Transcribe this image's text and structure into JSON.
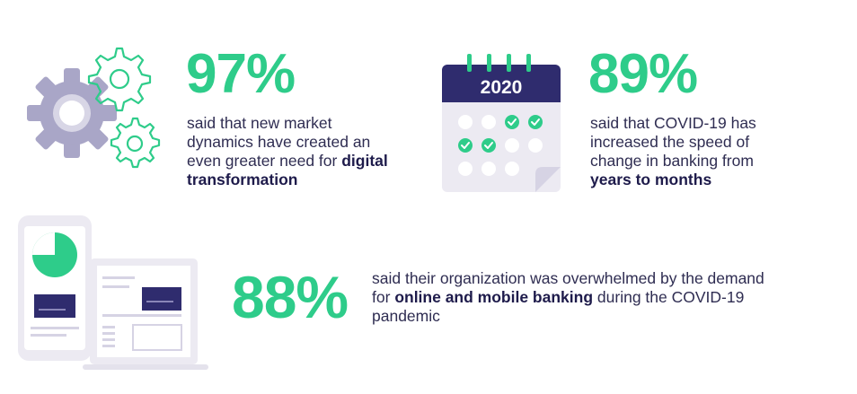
{
  "colors": {
    "accent": "#2ecc8a",
    "navy": "#2f2c6e",
    "gray": "#a9a6c7",
    "light": "#eceaf2"
  },
  "stats": [
    {
      "value": "97%",
      "text": "said that new market dynamics have created an even greater need for",
      "bold": "digital transformation",
      "icon": "gears-icon"
    },
    {
      "value": "89%",
      "text": "said that COVID-19 has increased the speed of change in banking from",
      "bold": "years to months",
      "icon": "calendar-icon",
      "calendar_year": "2020"
    },
    {
      "value": "88%",
      "text_before": "said their organization was overwhelmed by the demand for",
      "bold": "online and mobile banking",
      "text_after": "during the COVID-19 pandemic",
      "icon": "devices-icon"
    }
  ]
}
